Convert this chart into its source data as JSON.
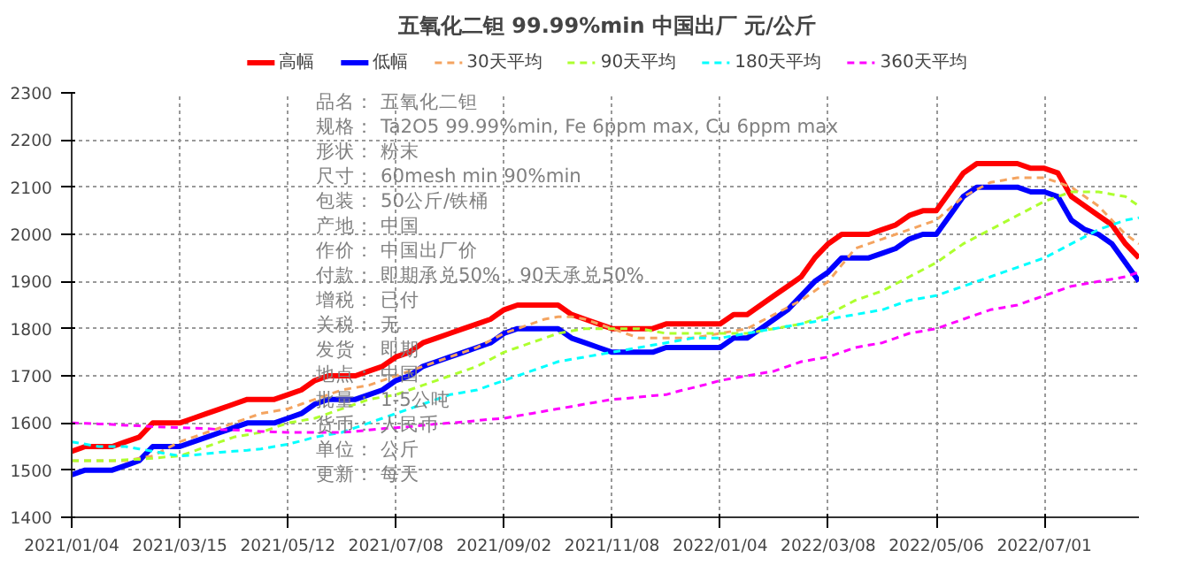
{
  "chart_data": {
    "type": "line",
    "title": "五氧化二钽 99.99%min 中国出厂 元/公斤",
    "categories": [
      "2021/01/04",
      null,
      null,
      null,
      null,
      null,
      null,
      null,
      "2021/03/15",
      null,
      null,
      null,
      null,
      null,
      null,
      null,
      "2021/05/12",
      null,
      null,
      null,
      null,
      null,
      null,
      null,
      "2021/07/08",
      null,
      null,
      null,
      null,
      null,
      null,
      null,
      "2021/09/02",
      null,
      null,
      null,
      null,
      null,
      null,
      null,
      "2021/11/08",
      null,
      null,
      null,
      null,
      null,
      null,
      null,
      "2022/01/04",
      null,
      null,
      null,
      null,
      null,
      null,
      null,
      "2022/03/08",
      null,
      null,
      null,
      null,
      null,
      null,
      null,
      "2022/05/06",
      null,
      null,
      null,
      null,
      null,
      null,
      null,
      "2022/07/01",
      null,
      null,
      null,
      null,
      null,
      null,
      null
    ],
    "series": [
      {
        "name": "高幅",
        "color": "#ff0000",
        "line_style": "solid",
        "values": [
          1540,
          1550,
          1550,
          1550,
          1560,
          1570,
          1600,
          1600,
          1600,
          1610,
          1620,
          1630,
          1640,
          1650,
          1650,
          1650,
          1660,
          1670,
          1690,
          1700,
          1700,
          1700,
          1710,
          1720,
          1740,
          1750,
          1770,
          1780,
          1790,
          1800,
          1810,
          1820,
          1840,
          1850,
          1850,
          1850,
          1850,
          1830,
          1820,
          1810,
          1800,
          1800,
          1800,
          1800,
          1810,
          1810,
          1810,
          1810,
          1810,
          1830,
          1830,
          1850,
          1870,
          1890,
          1910,
          1950,
          1980,
          2000,
          2000,
          2000,
          2010,
          2020,
          2040,
          2050,
          2050,
          2090,
          2130,
          2150,
          2150,
          2150,
          2150,
          2140,
          2140,
          2130,
          2080,
          2060,
          2040,
          2020,
          1980,
          1950
        ]
      },
      {
        "name": "低幅",
        "color": "#0000ff",
        "line_style": "solid",
        "values": [
          1490,
          1500,
          1500,
          1500,
          1510,
          1520,
          1550,
          1550,
          1550,
          1560,
          1570,
          1580,
          1590,
          1600,
          1600,
          1600,
          1610,
          1620,
          1640,
          1650,
          1650,
          1650,
          1660,
          1670,
          1690,
          1700,
          1720,
          1730,
          1740,
          1750,
          1760,
          1770,
          1790,
          1800,
          1800,
          1800,
          1800,
          1780,
          1770,
          1760,
          1750,
          1750,
          1750,
          1750,
          1760,
          1760,
          1760,
          1760,
          1760,
          1780,
          1780,
          1800,
          1820,
          1840,
          1870,
          1900,
          1920,
          1950,
          1950,
          1950,
          1960,
          1970,
          1990,
          2000,
          2000,
          2040,
          2080,
          2100,
          2100,
          2100,
          2100,
          2090,
          2090,
          2080,
          2030,
          2010,
          2000,
          1980,
          1940,
          1900
        ]
      },
      {
        "name": "30天平均",
        "color": "#f4a460",
        "line_style": "dashed",
        "values": [
          1520,
          1520,
          1520,
          1520,
          1520,
          1525,
          1530,
          1545,
          1560,
          1570,
          1580,
          1590,
          1600,
          1610,
          1620,
          1625,
          1630,
          1640,
          1650,
          1660,
          1670,
          1675,
          1680,
          1690,
          1700,
          1710,
          1720,
          1730,
          1740,
          1750,
          1760,
          1775,
          1790,
          1800,
          1810,
          1820,
          1825,
          1825,
          1820,
          1810,
          1800,
          1790,
          1780,
          1780,
          1780,
          1780,
          1780,
          1785,
          1790,
          1795,
          1800,
          1815,
          1830,
          1845,
          1860,
          1880,
          1900,
          1935,
          1970,
          1980,
          1990,
          2000,
          2010,
          2020,
          2030,
          2055,
          2080,
          2095,
          2110,
          2115,
          2120,
          2120,
          2120,
          2110,
          2100,
          2080,
          2060,
          2030,
          2000,
          1980
        ]
      },
      {
        "name": "90天平均",
        "color": "#adff2f",
        "line_style": "dashed",
        "values": [
          1520,
          1520,
          1520,
          1520,
          1522,
          1523,
          1525,
          1528,
          1530,
          1540,
          1550,
          1560,
          1570,
          1575,
          1580,
          1590,
          1600,
          1605,
          1610,
          1620,
          1630,
          1640,
          1650,
          1655,
          1660,
          1670,
          1680,
          1690,
          1700,
          1710,
          1720,
          1735,
          1750,
          1760,
          1770,
          1780,
          1790,
          1795,
          1800,
          1800,
          1800,
          1800,
          1800,
          1795,
          1790,
          1790,
          1790,
          1790,
          1790,
          1790,
          1790,
          1795,
          1800,
          1805,
          1810,
          1820,
          1830,
          1845,
          1860,
          1870,
          1880,
          1895,
          1910,
          1925,
          1940,
          1960,
          1980,
          1995,
          2010,
          2025,
          2040,
          2055,
          2070,
          2080,
          2090,
          2090,
          2090,
          2085,
          2080,
          2060
        ]
      },
      {
        "name": "180天平均",
        "color": "#00ffff",
        "line_style": "dashed",
        "values": [
          1560,
          1555,
          1550,
          1550,
          1550,
          1545,
          1540,
          1535,
          1530,
          1532,
          1535,
          1538,
          1540,
          1542,
          1545,
          1550,
          1555,
          1562,
          1570,
          1575,
          1580,
          1590,
          1600,
          1610,
          1620,
          1630,
          1640,
          1650,
          1660,
          1665,
          1670,
          1680,
          1690,
          1700,
          1710,
          1720,
          1730,
          1735,
          1740,
          1745,
          1750,
          1755,
          1760,
          1765,
          1770,
          1775,
          1780,
          1780,
          1780,
          1785,
          1790,
          1795,
          1800,
          1805,
          1810,
          1815,
          1820,
          1825,
          1830,
          1835,
          1840,
          1850,
          1860,
          1865,
          1870,
          1880,
          1890,
          1900,
          1910,
          1920,
          1930,
          1940,
          1950,
          1965,
          1980,
          1995,
          2010,
          2020,
          2030,
          2035
        ]
      },
      {
        "name": "360天平均",
        "color": "#ff00ff",
        "line_style": "dashed",
        "values": [
          1600,
          1599,
          1598,
          1597,
          1595,
          1594,
          1592,
          1591,
          1590,
          1589,
          1588,
          1586,
          1585,
          1584,
          1582,
          1581,
          1580,
          1580,
          1580,
          1580,
          1580,
          1582,
          1585,
          1588,
          1590,
          1592,
          1595,
          1598,
          1600,
          1602,
          1605,
          1608,
          1610,
          1615,
          1620,
          1625,
          1630,
          1635,
          1640,
          1645,
          1650,
          1652,
          1655,
          1658,
          1660,
          1668,
          1675,
          1682,
          1690,
          1695,
          1700,
          1705,
          1710,
          1720,
          1730,
          1735,
          1740,
          1750,
          1760,
          1765,
          1770,
          1780,
          1790,
          1795,
          1800,
          1810,
          1820,
          1830,
          1840,
          1845,
          1850,
          1860,
          1870,
          1880,
          1890,
          1895,
          1900,
          1905,
          1910,
          1920
        ]
      }
    ],
    "ylim": [
      1400,
      2300
    ],
    "yticks": [
      1400,
      1500,
      1600,
      1700,
      1800,
      1900,
      2000,
      2100,
      2200,
      2300
    ],
    "grid": true,
    "legend": "top",
    "annotations": [
      "品名：  五氧化二钽",
      "规格：  Ta2O5 99.99%min, Fe 6ppm max, Cu 6ppm max",
      "形状：  粉末",
      "尺寸：  60mesh min 90%min",
      "包装：  50公斤/铁桶",
      "产地：  中国",
      "作价：  中国出厂价",
      "付款：  即期承兑50%，90天承兑50%",
      "增税：  已付",
      "关税：  无",
      "发货：  即期",
      "地点：  中国",
      "批量：  1-5公吨",
      "货币：  人民币",
      "单位：  公斤",
      "更新：  每天"
    ]
  }
}
